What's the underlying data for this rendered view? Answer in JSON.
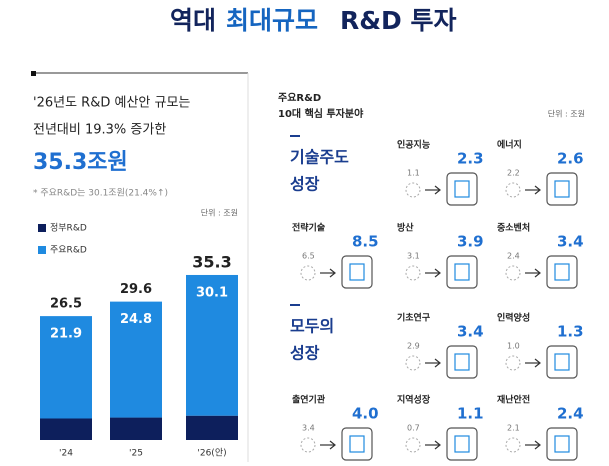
{
  "header": {
    "title_parts": [
      "역대",
      "최대규모",
      "R&D 투자"
    ]
  },
  "summary": {
    "lines": [
      "'26년도 R&D 예산안 규모는",
      "전년대비 19.3% 증가한"
    ],
    "amount": "35.3조원",
    "note": "* 주요R&D는 30.1조원(21.4%↑)"
  },
  "chart_data": {
    "type": "bar",
    "stacked": true,
    "unit": "단위 : 조원",
    "categories": [
      "'24",
      "'25",
      "'26(안)"
    ],
    "series": [
      {
        "name": "정부R&D",
        "color": "#0d1f5c",
        "values": [
          4.6,
          4.8,
          5.2
        ]
      },
      {
        "name": "주요R&D",
        "color": "#1f8ae0",
        "values": [
          21.9,
          24.8,
          30.1
        ]
      }
    ],
    "totals": [
      26.5,
      29.6,
      35.3
    ],
    "ylim": [
      0,
      40
    ]
  },
  "investment": {
    "heading": [
      "주요R&D",
      "10대 핵심 투자분야"
    ],
    "unit": "단위 : 조원",
    "groups": [
      {
        "label": [
          "기술주도",
          "성장"
        ]
      },
      {
        "label": [
          "모두의",
          "성장"
        ]
      }
    ],
    "items": [
      {
        "name": "인공지능",
        "before": "1.1",
        "after": "2.3"
      },
      {
        "name": "에너지",
        "before": "2.2",
        "after": "2.6"
      },
      {
        "name": "전략기술",
        "before": "6.5",
        "after": "8.5"
      },
      {
        "name": "방산",
        "before": "3.1",
        "after": "3.9"
      },
      {
        "name": "중소벤처",
        "before": "2.4",
        "after": "3.4"
      },
      {
        "name": "기초연구",
        "before": "2.9",
        "after": "3.4"
      },
      {
        "name": "인력양성",
        "before": "1.0",
        "after": "1.3"
      },
      {
        "name": "출연기관",
        "before": "3.4",
        "after": "4.0"
      },
      {
        "name": "지역성장",
        "before": "0.7",
        "after": "1.1"
      },
      {
        "name": "재난안전",
        "before": "2.1",
        "after": "2.4"
      }
    ]
  }
}
